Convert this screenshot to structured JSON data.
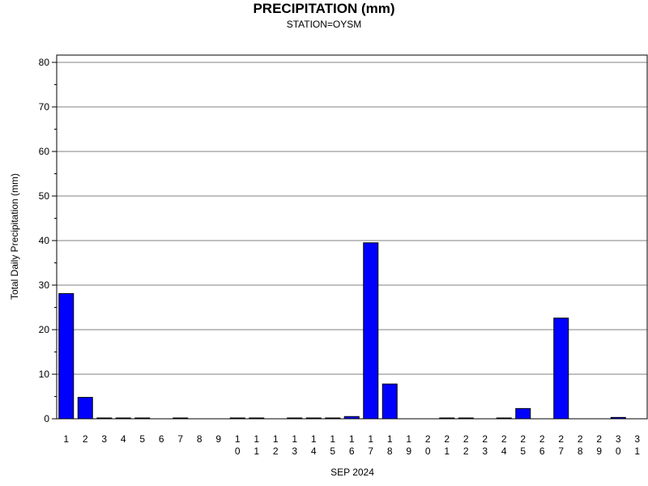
{
  "chart_data": {
    "type": "bar",
    "title": "PRECIPITATION (mm)",
    "subtitle": "STATION=OYSM",
    "xlabel": "SEP 2024",
    "ylabel": "Total Daily Precipitation (mm)",
    "ylim": [
      0,
      82
    ],
    "yticks": [
      0,
      10,
      20,
      30,
      40,
      50,
      60,
      70,
      80
    ],
    "grid": true,
    "categories": [
      "1",
      "2",
      "3",
      "4",
      "5",
      "6",
      "7",
      "8",
      "9",
      "10",
      "11",
      "12",
      "13",
      "14",
      "15",
      "16",
      "17",
      "18",
      "19",
      "20",
      "21",
      "22",
      "23",
      "24",
      "25",
      "26",
      "27",
      "28",
      "29",
      "30",
      "31"
    ],
    "values": [
      28.1,
      4.8,
      0.1,
      0.1,
      0.1,
      0,
      0.1,
      0,
      0,
      0.1,
      0.1,
      0,
      0.1,
      0.1,
      0.1,
      0.5,
      39.5,
      7.8,
      0,
      0,
      0.1,
      0.1,
      0,
      0.1,
      2.3,
      0,
      22.6,
      0,
      0,
      0.3,
      0
    ],
    "colors": {
      "bar_fill": "#0000ff",
      "bar_stroke": "#000000",
      "grid": "#808080",
      "axis": "#000000"
    }
  }
}
